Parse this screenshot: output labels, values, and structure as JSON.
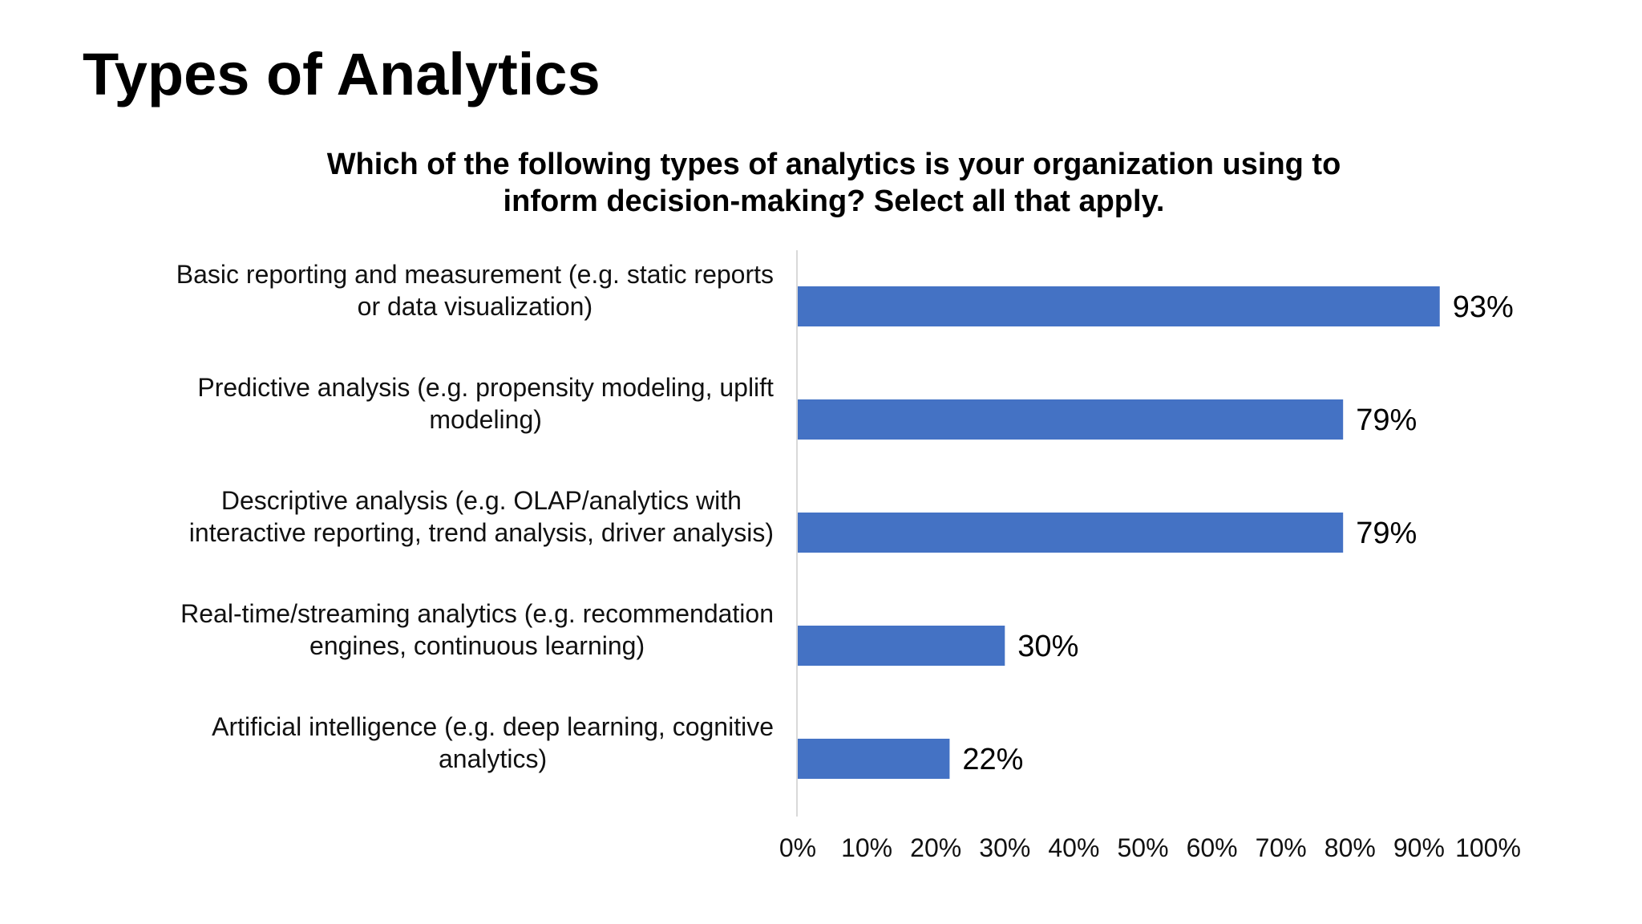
{
  "slide": {
    "title": "Types of Analytics"
  },
  "chart_data": {
    "type": "bar",
    "orientation": "horizontal",
    "title_lines": [
      "Which of the following types of analytics is your organization using to",
      "inform decision-making? Select all that apply."
    ],
    "categories": [
      [
        "Basic reporting and measurement (e.g. static reports",
        "or data visualization)"
      ],
      [
        "Predictive analysis (e.g. propensity modeling, uplift",
        "modeling)"
      ],
      [
        "Descriptive analysis (e.g. OLAP/analytics with",
        "interactive reporting,  trend analysis, driver analysis)"
      ],
      [
        "Real-time/streaming analytics (e.g. recommendation",
        "engines, continuous learning)"
      ],
      [
        "Artificial intelligence (e.g. deep learning, cognitive",
        "analytics)"
      ]
    ],
    "values": [
      93,
      79,
      79,
      30,
      22
    ],
    "value_labels": [
      "93%",
      "79%",
      "79%",
      "30%",
      "22%"
    ],
    "xlim": [
      0,
      100
    ],
    "x_ticks": [
      0,
      10,
      20,
      30,
      40,
      50,
      60,
      70,
      80,
      90,
      100
    ],
    "x_tick_labels": [
      "0%",
      "10%",
      "20%",
      "30%",
      "40%",
      "50%",
      "60%",
      "70%",
      "80%",
      "90%",
      "100%"
    ],
    "bar_color": "#4472C4",
    "axis_color": "#D9D9D9",
    "grid": false,
    "legend": false
  }
}
